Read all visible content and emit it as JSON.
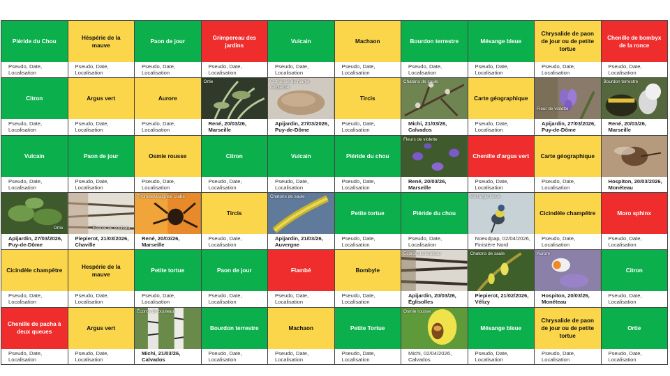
{
  "colors": {
    "green": "#0bb04d",
    "yellow": "#fbd54a",
    "red": "#ef2d2d"
  },
  "cells": [
    {
      "name": "Piéride du Chou",
      "color": "green",
      "bottom": "Pseudo, Date, Localisation"
    },
    {
      "name": "Héspérie de la mauve",
      "color": "yellow",
      "bottom": "Pseudo, Date, Localisation"
    },
    {
      "name": "Paon de jour",
      "color": "green",
      "bottom": "Pseudo, Date, Localisation"
    },
    {
      "name": "Grimpereau des jardins",
      "color": "red",
      "bottom": "Pseudo, Date, Localisation"
    },
    {
      "name": "Vulcain",
      "color": "green",
      "bottom": "Pseudo, Date, Localisation"
    },
    {
      "name": "Machaon",
      "color": "yellow",
      "bottom": "Pseudo, Date, Localisation"
    },
    {
      "name": "Bourdon terrestre",
      "color": "green",
      "bottom": "Pseudo, Date, Localisation"
    },
    {
      "name": "Mésange bleue",
      "color": "green",
      "bottom": "Pseudo, Date, Localisation"
    },
    {
      "name": "Chrysalide de paon de jour ou de petite tortue",
      "color": "yellow",
      "bottom": "Pseudo, Date, Localisation"
    },
    {
      "name": "Chenille de bombyx de la ronce",
      "color": "red",
      "bottom": "Pseudo, Date, Localisation"
    },
    {
      "name": "Citron",
      "color": "green",
      "bottom": "Pseudo, Date, Localisation"
    },
    {
      "name": "Argus vert",
      "color": "yellow",
      "bottom": "Pseudo, Date, Localisation"
    },
    {
      "name": "Aurore",
      "color": "yellow",
      "bottom": "Pseudo, Date, Localisation"
    },
    {
      "photo": true,
      "caption": "Ortie",
      "scene": "plant",
      "bottom": "René, 20/03/26, Marseille",
      "filled": true
    },
    {
      "photo": true,
      "caption": "Oothèque de mante religieuse",
      "scene": "stone",
      "bottom": "Apijardin, 27/03/2026, Puy-de-Dôme",
      "filled": true
    },
    {
      "name": "Tircis",
      "color": "yellow",
      "bottom": "Pseudo, Date, Localisation"
    },
    {
      "photo": true,
      "caption": "Chatons de saule",
      "scene": "branch",
      "bottom": "Michi, 21/03/26, Calvados",
      "filled": true
    },
    {
      "name": "Carte géographique",
      "color": "yellow",
      "bottom": "Pseudo, Date, Localisation"
    },
    {
      "photo": true,
      "caption": "Fleur de violette",
      "captionPos": "lower",
      "scene": "violet",
      "bottom": "Apijardin, 27/03/2026, Puy-de-Dôme",
      "filled": true
    },
    {
      "photo": true,
      "caption": "Bourdon terrestre",
      "scene": "bee",
      "bottom": "René, 20/03/26, Marseille",
      "filled": true
    },
    {
      "name": "Vulcain",
      "color": "green",
      "bottom": "Pseudo, Date, Localisation"
    },
    {
      "name": "Paon de jour",
      "color": "green",
      "bottom": "Pseudo, Date, Localisation"
    },
    {
      "name": "Osmie rousse",
      "color": "yellow",
      "bottom": "Pseudo, Date, Localisation"
    },
    {
      "name": "Citron",
      "color": "green",
      "bottom": "Pseudo, Date, Localisation"
    },
    {
      "name": "Vulcain",
      "color": "green",
      "bottom": "Pseudo, Date, Localisation"
    },
    {
      "name": "Piéride du chou",
      "color": "green",
      "bottom": "Pseudo, Date, Localisation"
    },
    {
      "photo": true,
      "caption": "Fleurs de violette",
      "scene": "violets",
      "bottom": "René, 20/03/26, Marseille",
      "filled": true
    },
    {
      "name": "Chenille d'argus vert",
      "color": "red",
      "bottom": "Pseudo, Date, Localisation"
    },
    {
      "name": "Carte géographique",
      "color": "yellow",
      "bottom": "Pseudo, Date, Localisation"
    },
    {
      "photo": true,
      "caption": "",
      "scene": "fly",
      "bottom": "Hospiton, 20/03/2026, Monéteau",
      "filled": true
    },
    {
      "photo": true,
      "caption": "Ortie",
      "captionPos": "br",
      "scene": "nettle",
      "bottom": "Apijardin, 27/03/2026, Puy-de-Dôme",
      "filled": true
    },
    {
      "photo": true,
      "caption": "Écorce de bouleau",
      "captionPos": "br",
      "scene": "bark",
      "bottom": "Piepierot, 21/03/2026, Chaville",
      "filled": true
    },
    {
      "photo": true,
      "caption": "Thomise/araignée crabe",
      "scene": "spider",
      "bottom": "René, 20/03/26, Marseille",
      "filled": true
    },
    {
      "name": "Tircis",
      "color": "yellow",
      "bottom": "Pseudo, Date, Localisation"
    },
    {
      "photo": true,
      "caption": "Chatons de saule",
      "scene": "catkin",
      "bottom": "Apijardin, 21/03/26, Auvergne",
      "filled": true
    },
    {
      "name": "Petite tortue",
      "color": "green",
      "bottom": "Pseudo, Date, Localisation"
    },
    {
      "name": "Piéride du chou",
      "color": "green",
      "bottom": "Pseudo, Date, Localisation"
    },
    {
      "photo": true,
      "caption": "Mésange bleue",
      "scene": "bird",
      "bottom": "Noeudpap, 02/04/2026, Finistère Nord",
      "filled": true,
      "light": true
    },
    {
      "name": "Cicindèle champêtre",
      "color": "yellow",
      "bottom": "Pseudo, Date, Localisation"
    },
    {
      "name": "Moro sphinx",
      "color": "red",
      "bottom": "Pseudo, Date, Localisation"
    },
    {
      "name": "Cicindèle champêtre",
      "color": "yellow",
      "bottom": "Pseudo, Date, Localisation"
    },
    {
      "name": "Hespérie de la mauve",
      "color": "yellow",
      "bottom": "Pseudo, Date, Localisation"
    },
    {
      "name": "Petite tortue",
      "color": "green",
      "bottom": "Pseudo, Date, Localisation"
    },
    {
      "name": "Paon de jour",
      "color": "green",
      "bottom": "Pseudo, Date, Localisation"
    },
    {
      "name": "Flambé",
      "color": "red",
      "bottom": "Pseudo, Date, Localisation"
    },
    {
      "name": "Bombyle",
      "color": "yellow",
      "bottom": "Pseudo, Date, Localisation"
    },
    {
      "photo": true,
      "caption": "Écorce de bouleau",
      "scene": "bark2",
      "bottom": "Apijardin, 20/03/26, Églisolles",
      "filled": true
    },
    {
      "photo": true,
      "caption": "Chatons de saule",
      "scene": "willow",
      "bottom": "Piepierot, 21/02/2026, Vélizy",
      "filled": true
    },
    {
      "photo": true,
      "caption": "Aurore",
      "scene": "aurore",
      "bottom": "Hospiton, 20/03/26, Monéteau",
      "filled": true
    },
    {
      "name": "Citron",
      "color": "green",
      "bottom": "Pseudo, Date, Localisation"
    },
    {
      "name": "Chenille de pacha à deux queues",
      "color": "red",
      "bottom": "Pseudo, Date, Localisation"
    },
    {
      "name": "Argus vert",
      "color": "yellow",
      "bottom": "Pseudo, Date, Localisation"
    },
    {
      "photo": true,
      "caption": "Écorce de bouleau",
      "scene": "birch",
      "bottom": "Michi, 21/03/26, Calvados",
      "filled": true
    },
    {
      "name": "Bourdon terrestre",
      "color": "green",
      "bottom": "Pseudo, Date, Localisation"
    },
    {
      "name": "Machaon",
      "color": "yellow",
      "bottom": "Pseudo, Date, Localisation"
    },
    {
      "name": "Petite Tortue",
      "color": "green",
      "bottom": "Pseudo, Date, Localisation"
    },
    {
      "photo": true,
      "caption": "Osmie rousse",
      "scene": "osmie",
      "bottom": "Michi, 02/04/2026, Calvados",
      "filled": true,
      "light": true
    },
    {
      "name": "Mésange bleue",
      "color": "green",
      "bottom": "Pseudo, Date, Localisation"
    },
    {
      "name": "Chrysalide de paon de jour ou de petite tortue",
      "color": "yellow",
      "bottom": "Pseudo, Date, Localisation"
    },
    {
      "name": "Ortie",
      "color": "green",
      "bottom": "Pseudo, Date, Localisation"
    }
  ]
}
